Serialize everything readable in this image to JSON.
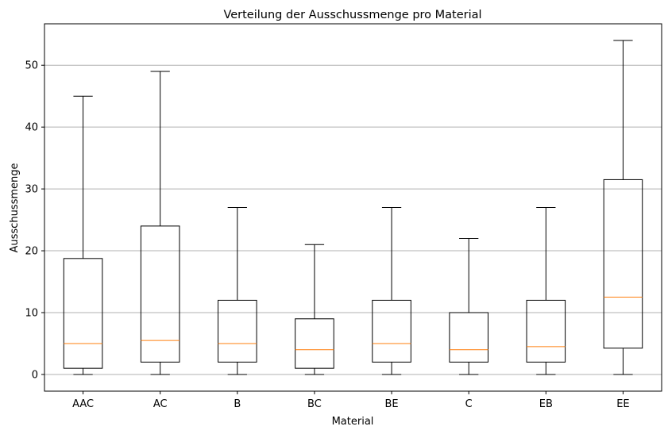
{
  "chart_data": {
    "type": "boxplot",
    "title": "Verteilung der Ausschussmenge pro Material",
    "xlabel": "Material",
    "ylabel": "Ausschussmenge",
    "ylim": [
      -2.7,
      56.7
    ],
    "yticks": [
      0,
      10,
      20,
      30,
      40,
      50
    ],
    "grid": "y",
    "categories": [
      "AAC",
      "AC",
      "B",
      "BC",
      "BE",
      "C",
      "EB",
      "EE"
    ],
    "boxes": [
      {
        "category": "AAC",
        "whisker_low": 0,
        "q1": 1,
        "median": 5,
        "q3": 18.75,
        "whisker_high": 45
      },
      {
        "category": "AC",
        "whisker_low": 0,
        "q1": 2,
        "median": 5.5,
        "q3": 24,
        "whisker_high": 49
      },
      {
        "category": "B",
        "whisker_low": 0,
        "q1": 2,
        "median": 5,
        "q3": 12,
        "whisker_high": 27
      },
      {
        "category": "BC",
        "whisker_low": 0,
        "q1": 1,
        "median": 4,
        "q3": 9,
        "whisker_high": 21
      },
      {
        "category": "BE",
        "whisker_low": 0,
        "q1": 2,
        "median": 5,
        "q3": 12,
        "whisker_high": 27
      },
      {
        "category": "C",
        "whisker_low": 0,
        "q1": 2,
        "median": 4,
        "q3": 10,
        "whisker_high": 22
      },
      {
        "category": "EB",
        "whisker_low": 0,
        "q1": 2,
        "median": 4.5,
        "q3": 12,
        "whisker_high": 27
      },
      {
        "category": "EE",
        "whisker_low": 0,
        "q1": 4.25,
        "median": 12.5,
        "q3": 31.5,
        "whisker_high": 54
      }
    ],
    "colors": {
      "box": "#000000",
      "median": "#ff7f0e",
      "grid": "#b0b0b0"
    }
  }
}
